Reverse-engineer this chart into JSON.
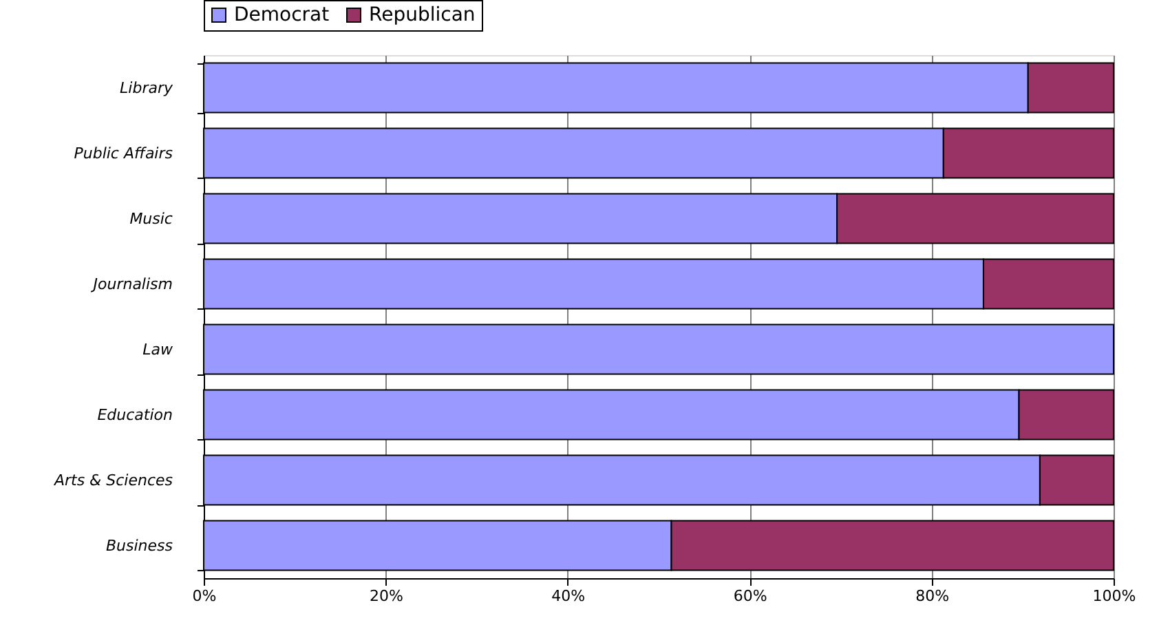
{
  "chart_data": {
    "type": "bar",
    "orientation": "horizontal",
    "stacked": true,
    "categories": [
      "Library",
      "Public  Affairs",
      "Music",
      "Journalism",
      "Law",
      "Education",
      "Arts & Sciences",
      "Business"
    ],
    "series": [
      {
        "name": "Democrat",
        "color": "#9999ff",
        "values": [
          90.6,
          81.3,
          69.6,
          85.7,
          100,
          89.6,
          91.9,
          51.4
        ]
      },
      {
        "name": "Republican",
        "color": "#993366",
        "values": [
          9.4,
          18.7,
          30.4,
          14.3,
          null,
          10.4,
          8.1,
          48.6
        ]
      }
    ],
    "xlim": [
      0,
      100
    ],
    "xticks": [
      {
        "value": 0,
        "label": "0%"
      },
      {
        "value": 20,
        "label": "20%"
      },
      {
        "value": 40,
        "label": "40%"
      },
      {
        "value": 60,
        "label": "60%"
      },
      {
        "value": 80,
        "label": "80%"
      },
      {
        "value": 100,
        "label": "100%"
      }
    ],
    "grid": "x",
    "legend": "top"
  }
}
